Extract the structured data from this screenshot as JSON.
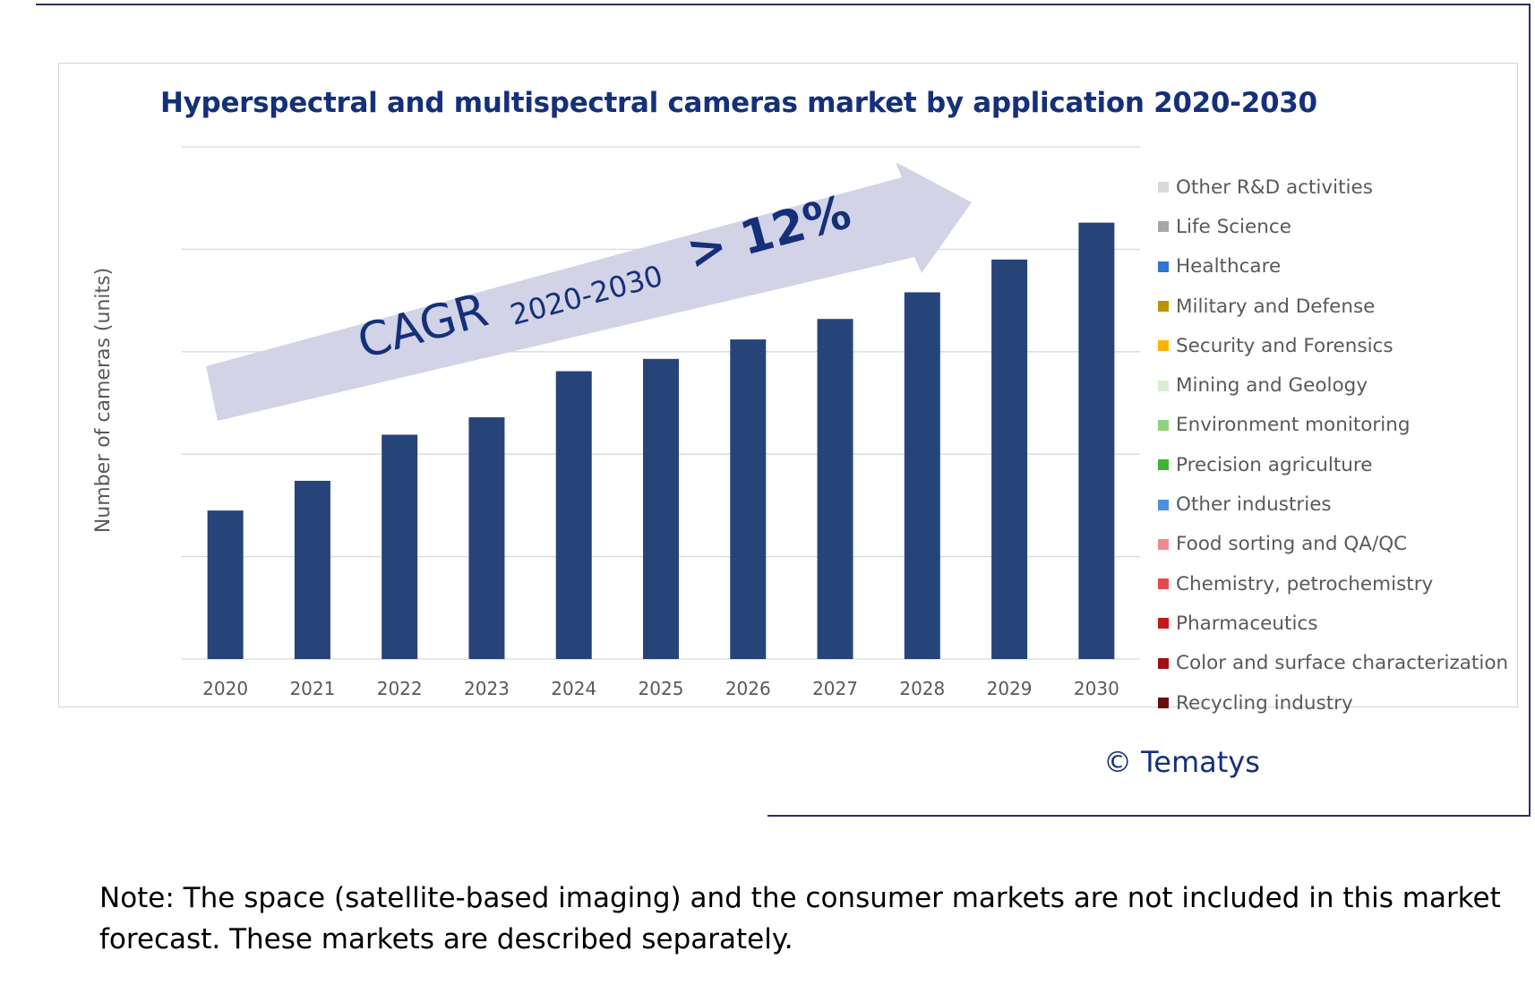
{
  "chart_data": {
    "type": "bar",
    "title": "Hyperspectral and multispectral cameras market by application 2020-2030",
    "xlabel": "",
    "ylabel": "Number of cameras (units)",
    "categories": [
      "2020",
      "2021",
      "2022",
      "2023",
      "2024",
      "2025",
      "2026",
      "2027",
      "2028",
      "2029",
      "2030"
    ],
    "values": [
      1.45,
      1.74,
      2.19,
      2.36,
      2.81,
      2.93,
      3.12,
      3.32,
      3.58,
      3.9,
      4.26
    ],
    "ylim": [
      0,
      5
    ],
    "y_ticks_labeled": false,
    "grid": true,
    "bar_color": "#264478",
    "legend_position": "right",
    "legend": [
      {
        "label": "Other R&D activities",
        "color": "#d9d9d9"
      },
      {
        "label": "Life Science",
        "color": "#a6a6a6"
      },
      {
        "label": "Healthcare",
        "color": "#2e75d6"
      },
      {
        "label": "Military and Defense",
        "color": "#bf9000"
      },
      {
        "label": "Security and Forensics",
        "color": "#ffb300"
      },
      {
        "label": "Mining and Geology",
        "color": "#d8f0d0"
      },
      {
        "label": "Environment monitoring",
        "color": "#8fd47a"
      },
      {
        "label": "Precision agriculture",
        "color": "#3cb531"
      },
      {
        "label": "Other industries",
        "color": "#4a90e2"
      },
      {
        "label": "Food sorting and QA/QC",
        "color": "#f08a8a"
      },
      {
        "label": "Chemistry, petrochemistry",
        "color": "#e84a4a"
      },
      {
        "label": "Pharmaceutics",
        "color": "#c8161d"
      },
      {
        "label": "Color and surface characterization",
        "color": "#a01010"
      },
      {
        "label": "Recycling industry",
        "color": "#6b0d0d"
      }
    ],
    "annotation": {
      "cagr_label": "CAGR",
      "cagr_period": "2020-2030",
      "cagr_value": "> 12%",
      "arrow_color": "#d2d3e6",
      "text_color": "#15307a"
    }
  },
  "copyright": "© Tematys",
  "note": "Note: The space (satellite-based imaging)  and the consumer markets are not included in this market forecast. These markets are described separately."
}
